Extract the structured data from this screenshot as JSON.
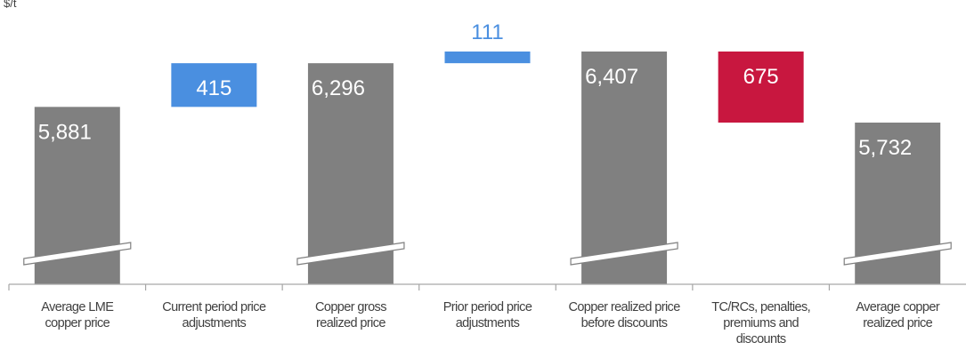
{
  "chart_data": {
    "type": "waterfall",
    "unit_label": "$/t",
    "categories": [
      [
        "Average LME",
        "copper price"
      ],
      [
        "Current period price",
        "adjustments"
      ],
      [
        "Copper gross",
        "realized price"
      ],
      [
        "Prior period price",
        "adjustments"
      ],
      [
        "Copper realized price",
        "before discounts"
      ],
      [
        "TC/RCs, penalties,",
        "premiums and",
        "discounts"
      ],
      [
        "Average copper",
        "realized price"
      ]
    ],
    "bars": [
      {
        "kind": "total",
        "value": 5881,
        "label": "5,881"
      },
      {
        "kind": "increase",
        "value": 415,
        "label": "415"
      },
      {
        "kind": "total",
        "value": 6296,
        "label": "6,296"
      },
      {
        "kind": "increase",
        "value": 111,
        "label": "111"
      },
      {
        "kind": "total",
        "value": 6407,
        "label": "6,407"
      },
      {
        "kind": "decrease",
        "value": 675,
        "label": "675"
      },
      {
        "kind": "total",
        "value": 5732,
        "label": "5,732"
      }
    ],
    "colors": {
      "total": "#808080",
      "increase": "#4a8fe0",
      "decrease": "#c8173f",
      "axis": "#a6a6a6"
    },
    "axis_break": true
  }
}
